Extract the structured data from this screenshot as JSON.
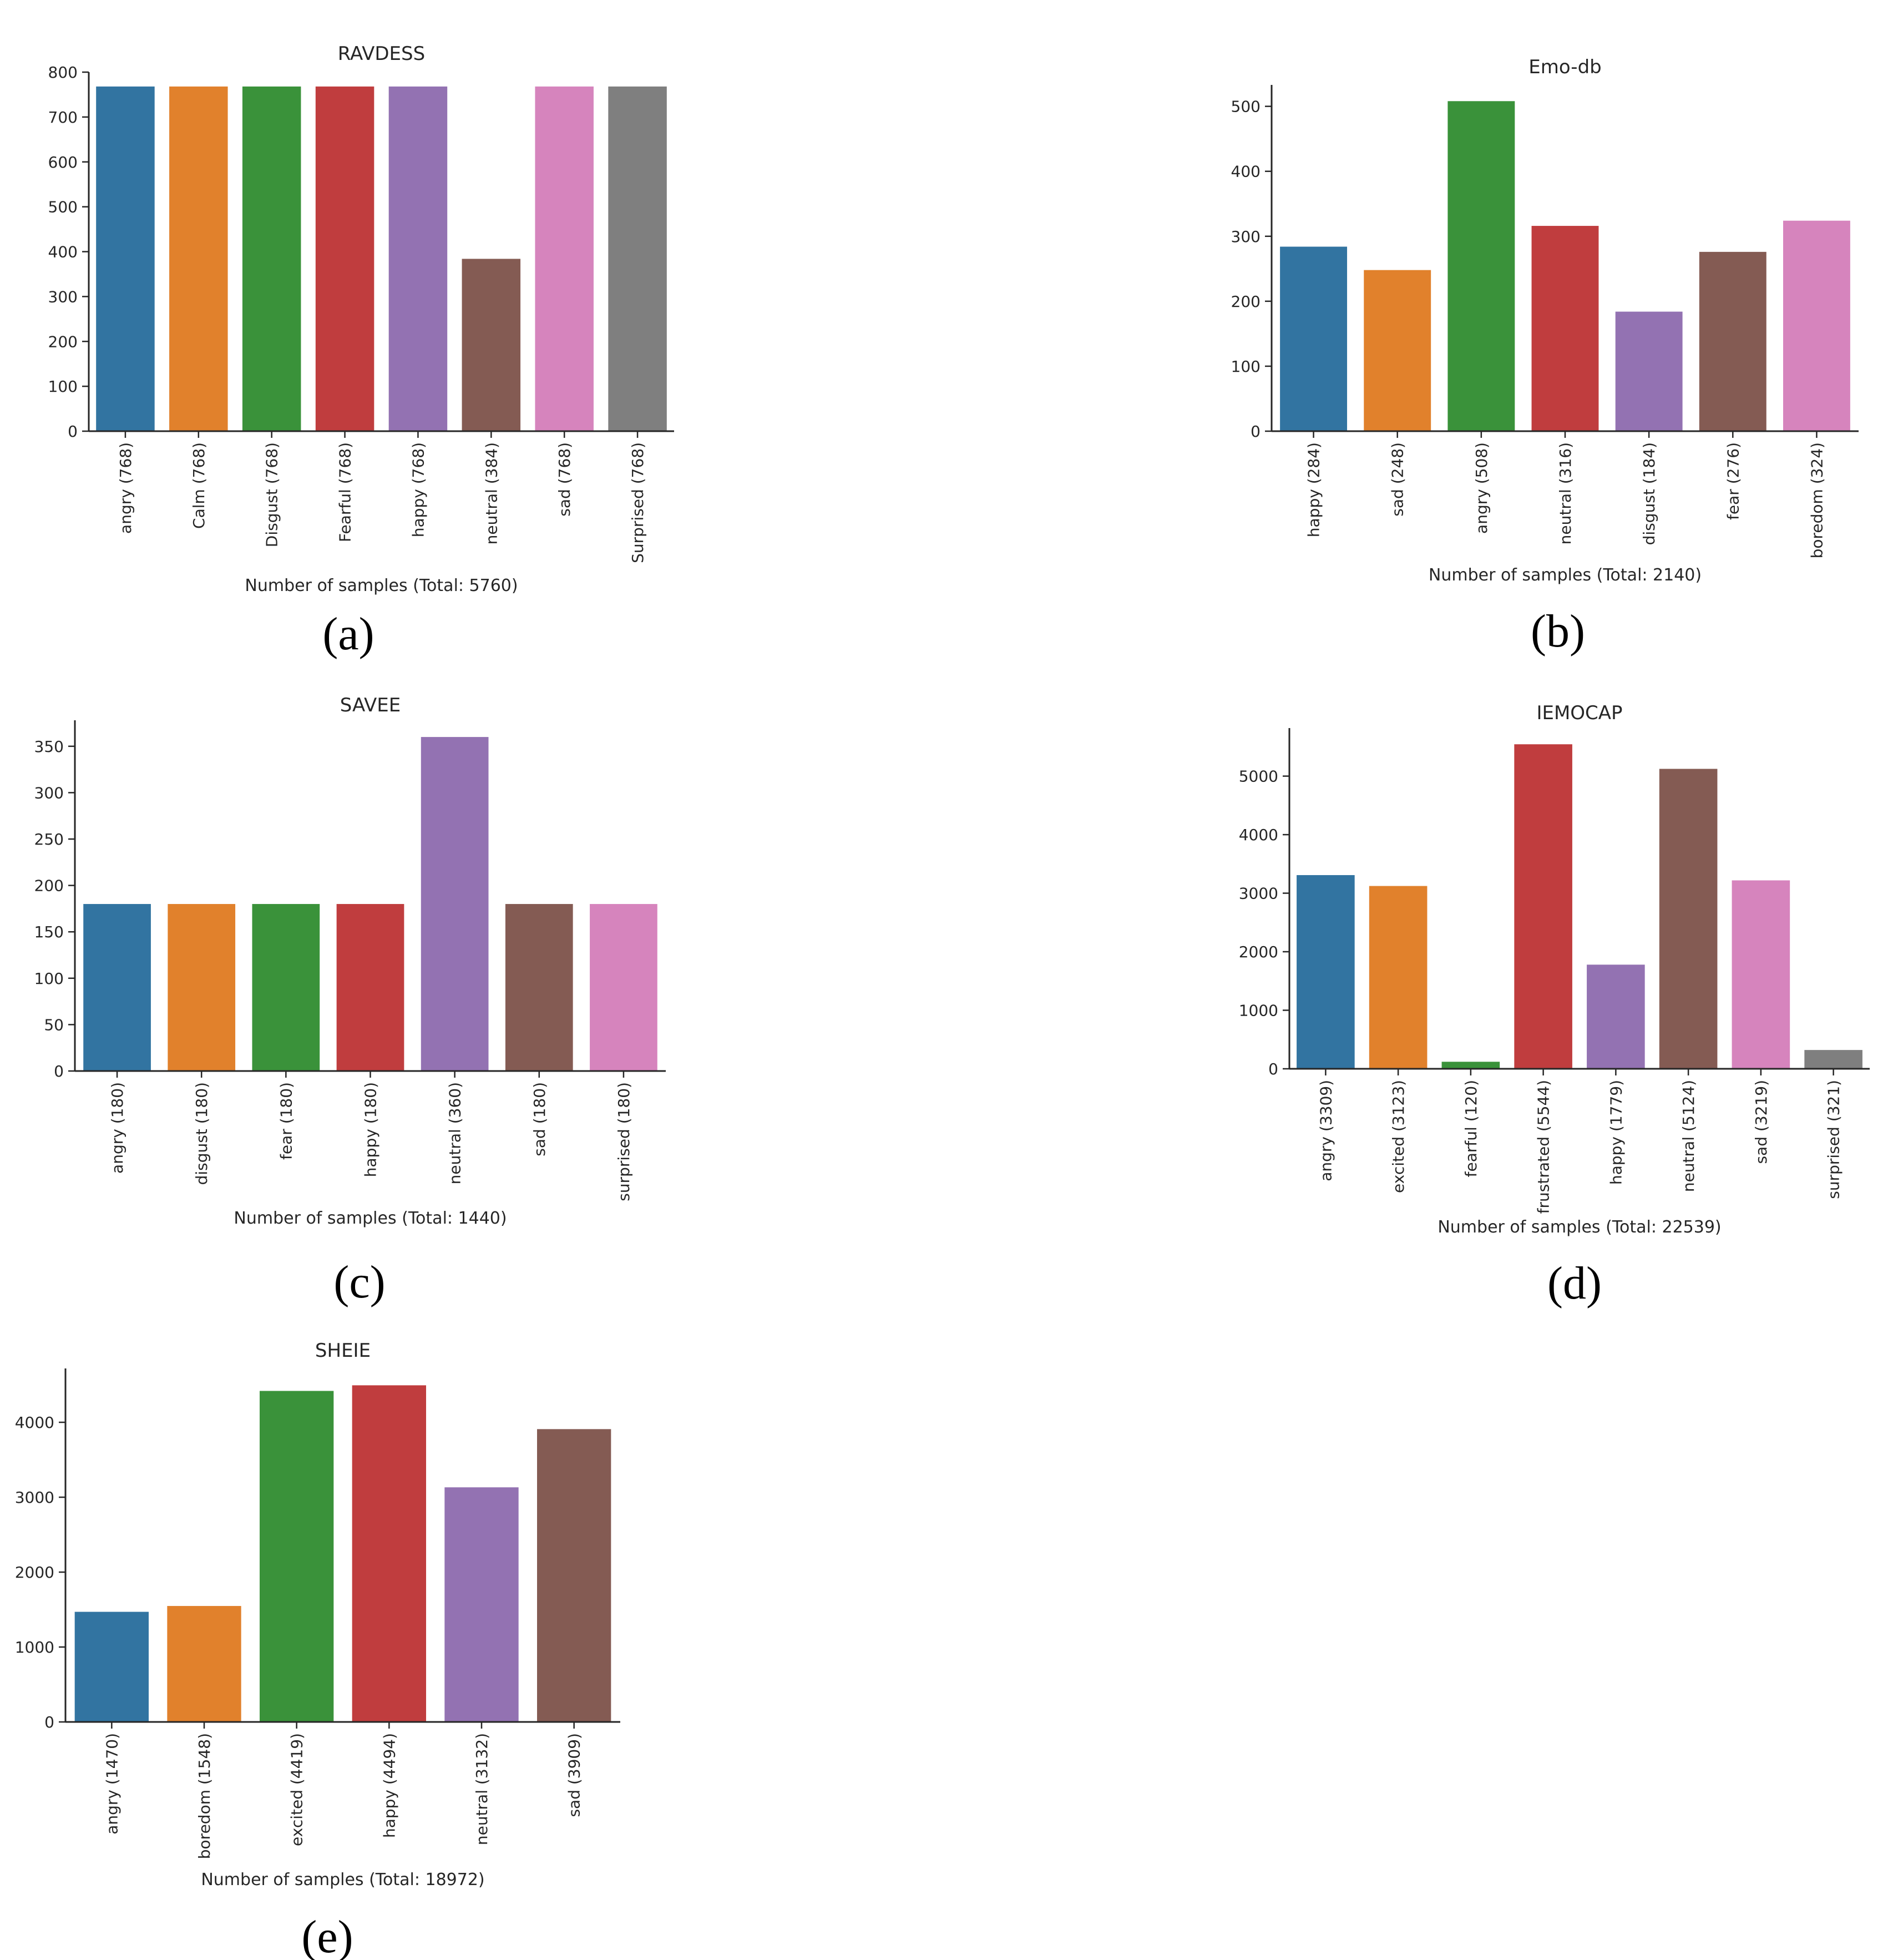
{
  "colors": [
    "#3274a1",
    "#e1812c",
    "#3a923a",
    "#c03d3e",
    "#9372b2",
    "#845b53",
    "#d684bd",
    "#7f7f7f"
  ],
  "chart_data": [
    {
      "type": "bar",
      "title": "RAVDESS",
      "caption": "(a)",
      "xlabel": "Number of samples (Total: 5760)",
      "ylabel": "",
      "categories": [
        "angry (768)",
        "Calm (768)",
        "Disgust (768)",
        "Fearful (768)",
        "happy (768)",
        "neutral (384)",
        "sad (768)",
        "Surprised (768)"
      ],
      "values": [
        768,
        768,
        768,
        768,
        768,
        384,
        768,
        768
      ],
      "ylim": [
        0,
        800
      ],
      "yticks": [
        0,
        100,
        200,
        300,
        400,
        500,
        600,
        700,
        800
      ],
      "grid": false,
      "legend": "none"
    },
    {
      "type": "bar",
      "title": "Emo-db",
      "caption": "(b)",
      "xlabel": "Number of samples (Total: 2140)",
      "ylabel": "",
      "categories": [
        "happy (284)",
        "sad (248)",
        "angry (508)",
        "neutral (316)",
        "disgust (184)",
        "fear (276)",
        "boredom (324)"
      ],
      "values": [
        284,
        248,
        508,
        316,
        184,
        276,
        324
      ],
      "ylim": [
        0,
        533
      ],
      "yticks": [
        0,
        100,
        200,
        300,
        400,
        500
      ],
      "grid": false,
      "legend": "none"
    },
    {
      "type": "bar",
      "title": "SAVEE",
      "caption": "(c)",
      "xlabel": "Number of samples (Total: 1440)",
      "ylabel": "",
      "categories": [
        "angry (180)",
        "disgust (180)",
        "fear (180)",
        "happy (180)",
        "neutral (360)",
        "sad (180)",
        "surprised (180)"
      ],
      "values": [
        180,
        180,
        180,
        180,
        360,
        180,
        180
      ],
      "ylim": [
        0,
        378
      ],
      "yticks": [
        0,
        50,
        100,
        150,
        200,
        250,
        300,
        350
      ],
      "grid": false,
      "legend": "none"
    },
    {
      "type": "bar",
      "title": "IEMOCAP",
      "caption": "(d)",
      "xlabel": "Number of samples (Total: 22539)",
      "ylabel": "",
      "categories": [
        "angry (3309)",
        "excited (3123)",
        "fearful (120)",
        "frustrated (5544)",
        "happy (1779)",
        "neutral (5124)",
        "sad (3219)",
        "surprised (321)"
      ],
      "values": [
        3309,
        3123,
        120,
        5544,
        1779,
        5124,
        3219,
        321
      ],
      "ylim": [
        0,
        5821
      ],
      "yticks": [
        0,
        1000,
        2000,
        3000,
        4000,
        5000
      ],
      "grid": false,
      "legend": "none"
    },
    {
      "type": "bar",
      "title": "SHEIE",
      "caption": "(e)",
      "xlabel": "Number of samples (Total: 18972)",
      "ylabel": "",
      "categories": [
        "angry (1470)",
        "boredom (1548)",
        "excited (4419)",
        "happy (4494)",
        "neutral (3132)",
        "sad (3909)"
      ],
      "values": [
        1470,
        1548,
        4419,
        4494,
        3132,
        3909
      ],
      "ylim": [
        0,
        4719
      ],
      "yticks": [
        0,
        1000,
        2000,
        3000,
        4000
      ],
      "grid": false,
      "legend": "none"
    }
  ]
}
